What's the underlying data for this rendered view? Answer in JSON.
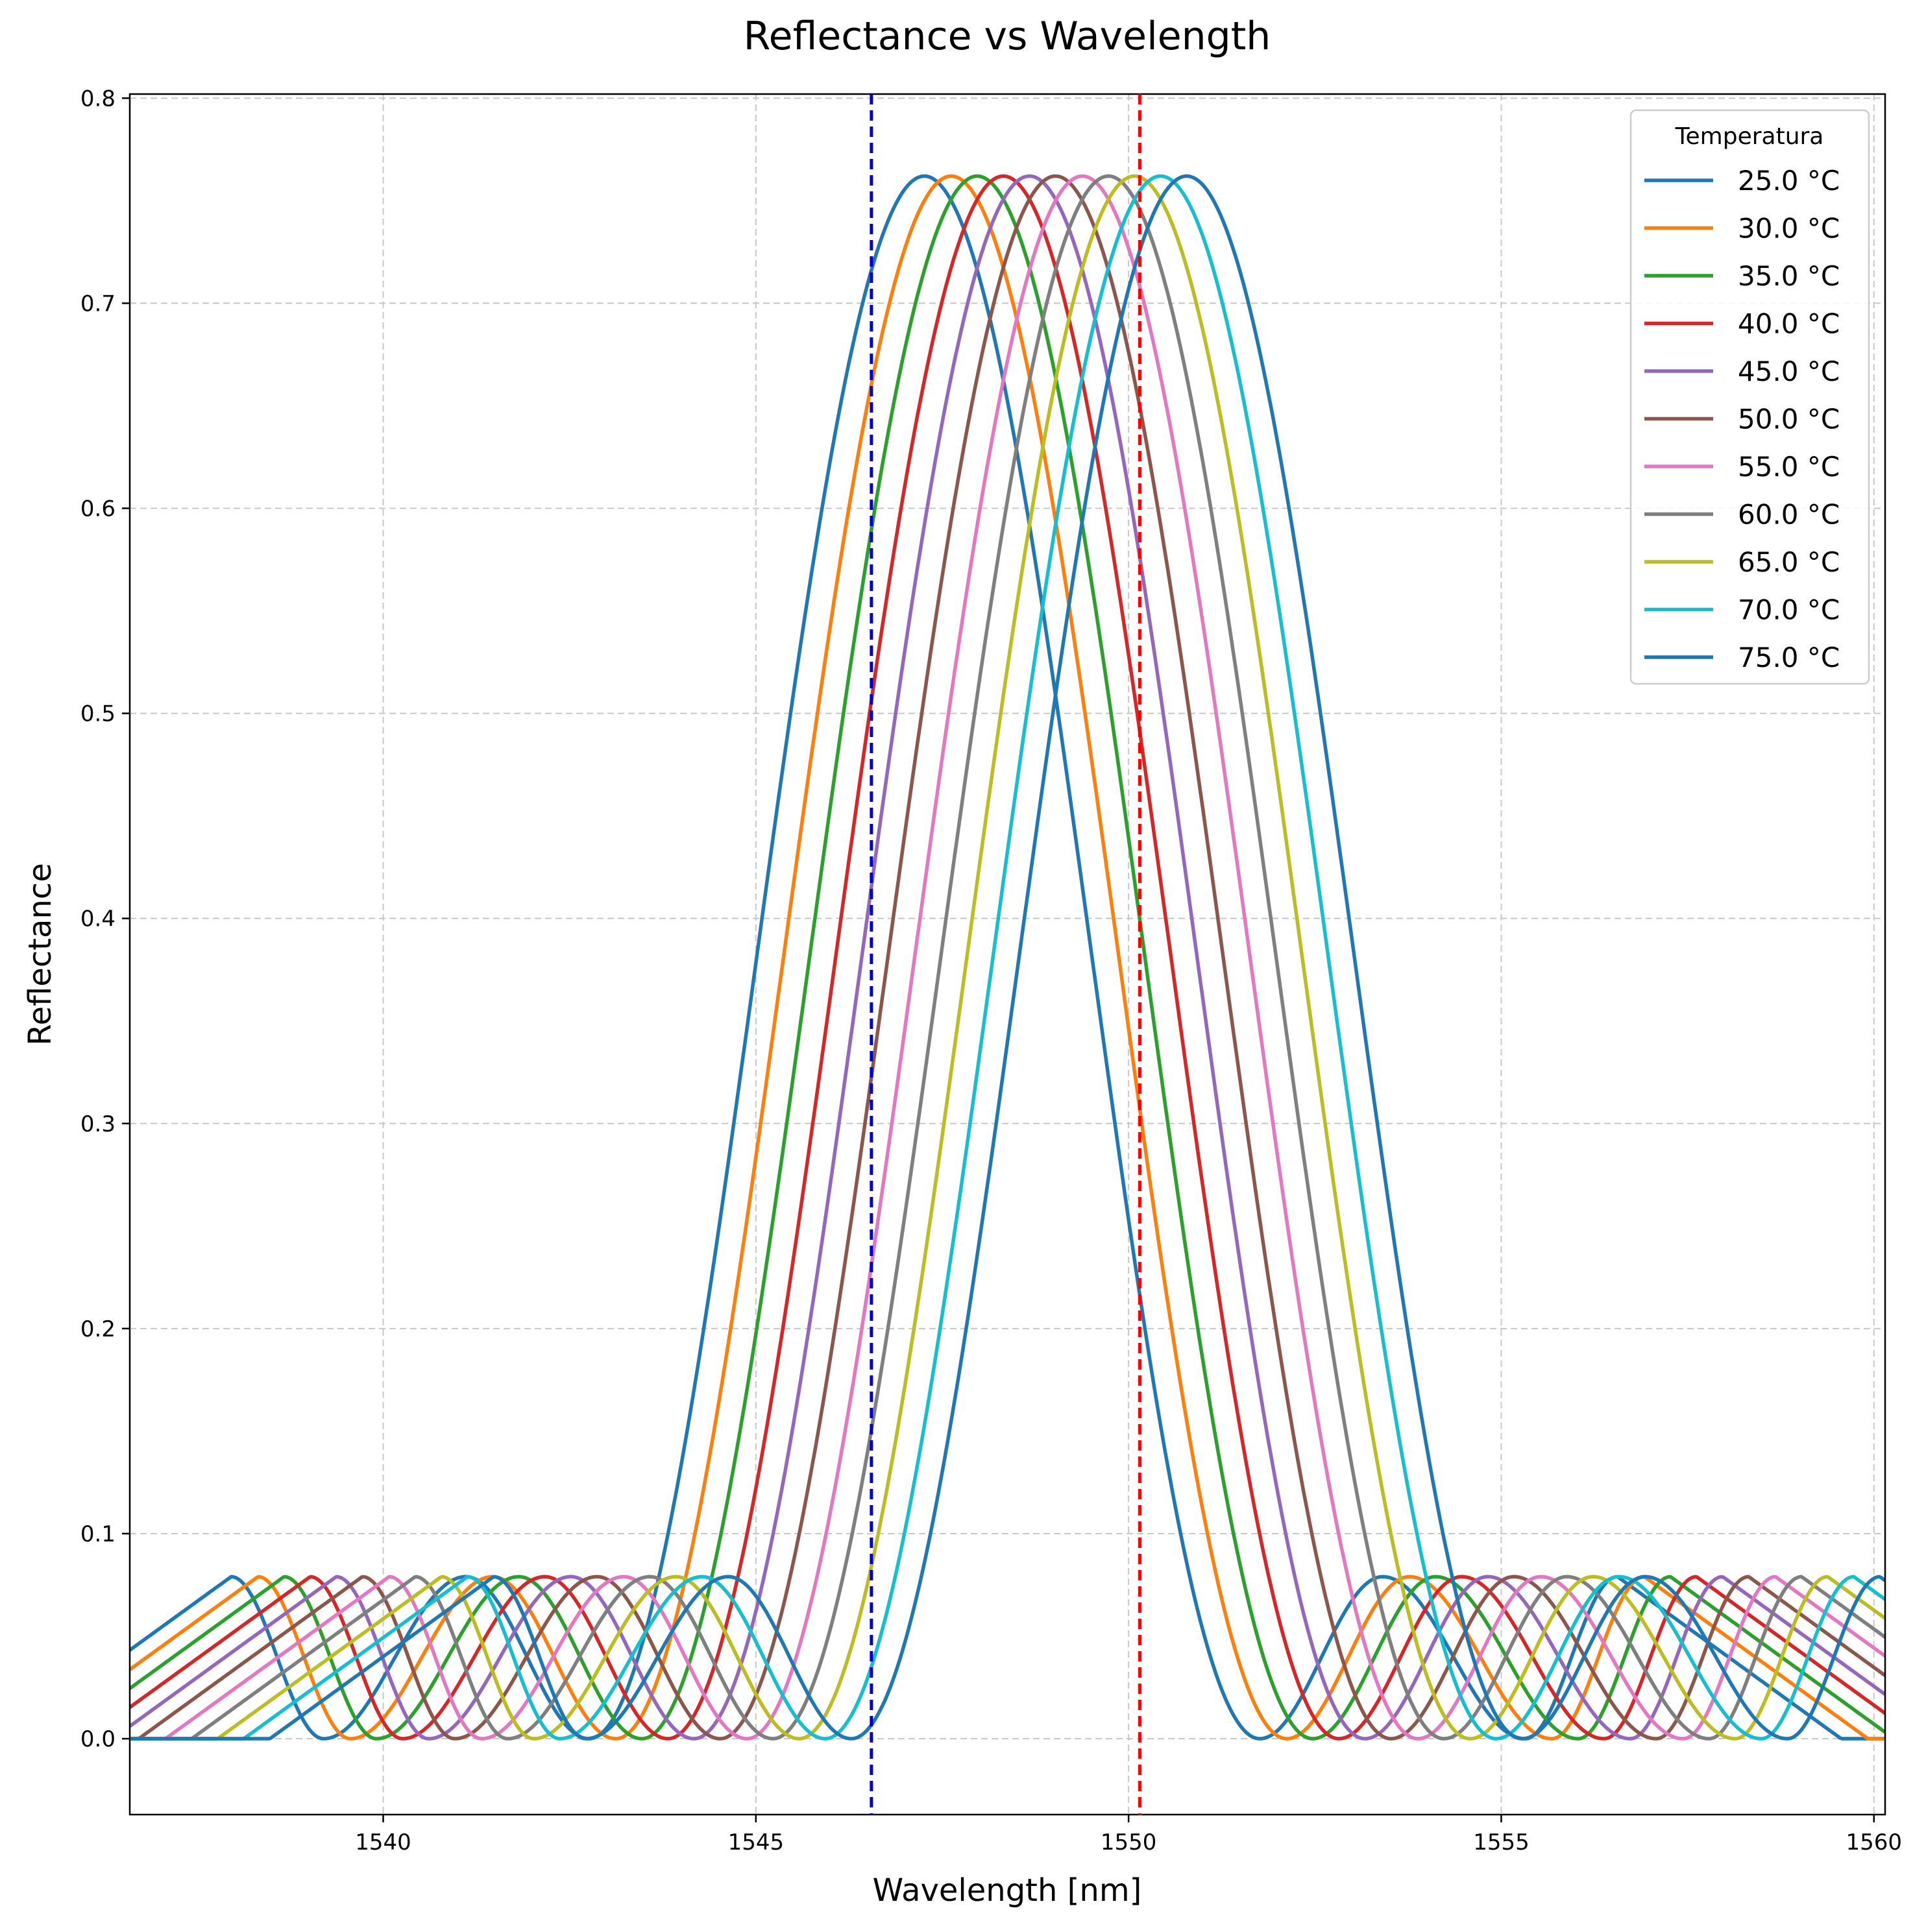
{
  "chart_data": {
    "type": "line",
    "title": "Reflectance vs Wavelength",
    "xlabel": "Wavelength [nm]",
    "ylabel": "Reflectance",
    "xlim": [
      1536.6,
      1560.15
    ],
    "ylim": [
      -0.037,
      0.802
    ],
    "x_ticks": [
      1540,
      1545,
      1550,
      1555,
      1560
    ],
    "x_tick_labels": [
      "1540",
      "1545",
      "1550",
      "1555",
      "1560"
    ],
    "y_ticks": [
      0.0,
      0.1,
      0.2,
      0.3,
      0.4,
      0.5,
      0.6,
      0.7,
      0.8
    ],
    "y_tick_labels": [
      "0.0",
      "0.1",
      "0.2",
      "0.3",
      "0.4",
      "0.5",
      "0.6",
      "0.7",
      "0.8"
    ],
    "grid": true,
    "legend": {
      "title": "Temperatura",
      "position": "top-right"
    },
    "model": {
      "description_free": true,
      "peak_reflectance": 0.762,
      "sidelobe_peak": 0.079,
      "first_null_offset_nm": 4.5,
      "first_sidelobe_offset_nm": 6.15,
      "second_null_offset_nm": 8.06,
      "second_sidelobe_offset_nm": 9.3
    },
    "series": [
      {
        "name": "25.0 °C",
        "center": 1547.26,
        "color": "#1f77b4"
      },
      {
        "name": "30.0 °C",
        "center": 1547.62,
        "color": "#ff7f0e"
      },
      {
        "name": "35.0 °C",
        "center": 1547.97,
        "color": "#2ca02c"
      },
      {
        "name": "40.0 °C",
        "center": 1548.32,
        "color": "#d62728"
      },
      {
        "name": "45.0 °C",
        "center": 1548.67,
        "color": "#9467bd"
      },
      {
        "name": "50.0 °C",
        "center": 1549.02,
        "color": "#8c564b"
      },
      {
        "name": "55.0 °C",
        "center": 1549.38,
        "color": "#e377c2"
      },
      {
        "name": "60.0 °C",
        "center": 1549.73,
        "color": "#7f7f7f"
      },
      {
        "name": "65.0 °C",
        "center": 1550.08,
        "color": "#bcbd22"
      },
      {
        "name": "70.0 °C",
        "center": 1550.43,
        "color": "#17becf"
      },
      {
        "name": "75.0 °C",
        "center": 1550.78,
        "color": "#1f77b4"
      }
    ],
    "vertical_lines": [
      {
        "x": 1546.55,
        "color": "#0000cc"
      },
      {
        "x": 1550.15,
        "color": "#ff0000"
      }
    ]
  }
}
